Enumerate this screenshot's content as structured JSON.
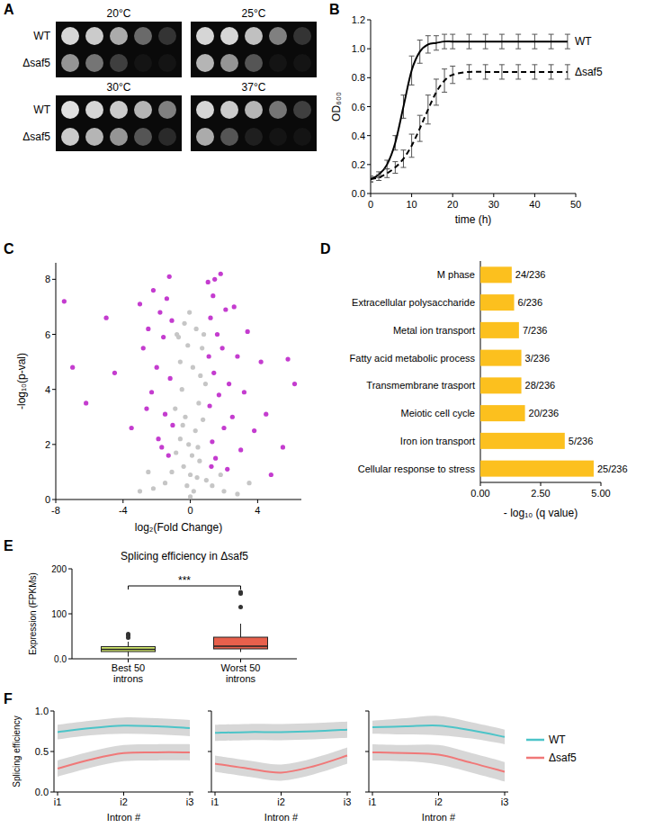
{
  "chart_data": [
    {
      "type": "spot_assay",
      "panel_label": "A",
      "strains": [
        "WT",
        "Δsaf5"
      ],
      "conditions": [
        {
          "title": "20°C",
          "spots": [
            [
              0.9,
              0.85,
              0.7,
              0.4,
              0.15
            ],
            [
              0.6,
              0.45,
              0.2,
              0,
              0
            ]
          ]
        },
        {
          "title": "25°C",
          "spots": [
            [
              0.9,
              0.9,
              0.8,
              0.5,
              0.15
            ],
            [
              0.75,
              0.6,
              0.3,
              0,
              0
            ]
          ]
        },
        {
          "title": "30°C",
          "spots": [
            [
              0.95,
              0.9,
              0.85,
              0.75,
              0.5
            ],
            [
              0.85,
              0.75,
              0.6,
              0.3,
              0.1
            ]
          ]
        },
        {
          "title": "37°C",
          "spots": [
            [
              0.9,
              0.85,
              0.75,
              0.45,
              0.2
            ],
            [
              0.7,
              0.3,
              0.05,
              0,
              0
            ]
          ]
        }
      ]
    },
    {
      "type": "line",
      "panel_label": "B",
      "x_label": "time (h)",
      "y_label": "OD₆₀₀",
      "x": [
        0,
        2,
        4,
        6,
        8,
        10,
        12,
        14,
        16,
        18,
        20,
        24,
        28,
        32,
        36,
        40,
        44,
        48
      ],
      "xlim": [
        0,
        50
      ],
      "xticks": [
        0,
        10,
        20,
        30,
        40,
        50
      ],
      "ylim": [
        0,
        1.2
      ],
      "yticks": [
        {
          "value": 0,
          "label": "0.0"
        },
        0.2,
        0.4,
        0.6,
        0.8,
        {
          "value": 1,
          "label": "1.0"
        },
        1.2
      ],
      "legend": "right",
      "series": [
        {
          "name": "WT",
          "color": "#000000",
          "line_style": "solid",
          "values": [
            0.1,
            0.13,
            0.2,
            0.35,
            0.6,
            0.85,
            0.98,
            1.03,
            1.04,
            1.05,
            1.05,
            1.05,
            1.05,
            1.05,
            1.05,
            1.05,
            1.05,
            1.05
          ],
          "error": [
            0.02,
            0.02,
            0.03,
            0.05,
            0.08,
            0.1,
            0.08,
            0.06,
            0.05,
            0.05,
            0.05,
            0.05,
            0.05,
            0.05,
            0.05,
            0.05,
            0.05,
            0.05
          ]
        },
        {
          "name": "Δsaf5",
          "color": "#000000",
          "line_style": "dashed",
          "values": [
            0.1,
            0.11,
            0.14,
            0.18,
            0.24,
            0.33,
            0.45,
            0.58,
            0.7,
            0.78,
            0.82,
            0.84,
            0.84,
            0.84,
            0.84,
            0.84,
            0.84,
            0.84
          ],
          "error": [
            0.02,
            0.02,
            0.03,
            0.04,
            0.06,
            0.08,
            0.09,
            0.1,
            0.09,
            0.08,
            0.06,
            0.05,
            0.05,
            0.05,
            0.05,
            0.05,
            0.05,
            0.05
          ]
        }
      ]
    },
    {
      "type": "scatter",
      "panel_label": "C",
      "x_label": "log₂(Fold Change)",
      "y_label": "-log₁₀(p-val)",
      "xlim": [
        -8,
        6.6
      ],
      "xticks": [
        -8,
        -4,
        0,
        4
      ],
      "ylim": [
        0,
        8.6
      ],
      "yticks": [
        0,
        2,
        4,
        6,
        8
      ],
      "series": [
        {
          "color": "#c6c6c6",
          "x": [
            0,
            0.2,
            -0.2,
            0.4,
            -0.4,
            0.1,
            -0.1,
            0.3,
            -0.3,
            0.5,
            -0.5,
            0.6,
            -0.6,
            0.7,
            -0.7,
            0.8,
            -0.8,
            0.9,
            -0.9,
            0.55,
            -0.6,
            0.75,
            -0.85,
            0,
            0.15,
            -0.15,
            0.35,
            -0.35,
            1.3,
            -1.5,
            2,
            -2.2,
            2.8,
            -3,
            1.8,
            -1.1,
            0.95,
            -2.5,
            3.5,
            -0.05,
            0.45,
            -0.45
          ],
          "values": [
            0.1,
            0.3,
            0.5,
            0.8,
            1.2,
            1.6,
            2,
            2.5,
            3,
            3.5,
            4,
            4.5,
            5,
            5.5,
            5.9,
            6,
            6,
            4.2,
            3.3,
            1.4,
            2.2,
            2.9,
            1.7,
            0.9,
            4.8,
            5.6,
            6.2,
            6.4,
            0.5,
            0.6,
            0.3,
            0.4,
            0.2,
            0.3,
            0.9,
            1,
            0.7,
            1,
            0.6,
            6.8,
            1.9,
            2.7
          ]
        },
        {
          "color": "#c43ccf",
          "x": [
            -7.5,
            -7,
            -6.2,
            -5,
            -4.5,
            -3.5,
            -3,
            -2.8,
            -2.5,
            -2.3,
            -2.2,
            -2,
            -1.9,
            -1.8,
            -1.6,
            -1.5,
            -1.4,
            -1.3,
            -1.2,
            -1.1,
            -1.05,
            -1.7,
            -2.6,
            1.05,
            1.1,
            1.15,
            1.2,
            1.3,
            1.35,
            1.4,
            1.5,
            1.6,
            1.7,
            1.8,
            1.9,
            2,
            2.1,
            2.3,
            2.5,
            2.6,
            2.8,
            3,
            3.2,
            3.4,
            3.8,
            4.2,
            4.5,
            4.8,
            5.5,
            5.8,
            6.2,
            1.25,
            2.2,
            1.45,
            -1.25
          ],
          "values": [
            7.2,
            4.8,
            3.5,
            6.6,
            4.6,
            2.6,
            7.1,
            5.5,
            6.2,
            3.9,
            7.6,
            4.8,
            2.2,
            6.8,
            5.9,
            3.1,
            7.3,
            1.6,
            4.4,
            6.5,
            2.7,
            1.9,
            3.3,
            7.9,
            5.2,
            3.4,
            6.6,
            2.1,
            7.4,
            4.6,
            1.5,
            6,
            3.8,
            8.2,
            5.5,
            2.6,
            6.9,
            4.2,
            3,
            7,
            5.2,
            1.8,
            3.9,
            6.1,
            2.5,
            5,
            3.1,
            0.9,
            1.9,
            5.1,
            4.2,
            1.2,
            1.1,
            8,
            8.1
          ]
        }
      ]
    },
    {
      "type": "bar",
      "panel_label": "D",
      "orientation": "horizontal",
      "x_label": "- log₁₀ (q value)",
      "categories": [
        "M phase",
        "Extracellular polysaccharide",
        "Metal ion transport",
        "Fatty acid metabolic process",
        "Transmembrane trasport",
        "Meiotic cell cycle",
        "Iron ion transport",
        "Cellular response to stress"
      ],
      "values": [
        1.3,
        1.4,
        1.6,
        1.7,
        1.7,
        1.85,
        3.5,
        4.7
      ],
      "annotations": [
        "24/236",
        "6/236",
        "7/236",
        "3/236",
        "28/236",
        "20/236",
        "5/236",
        "25/236"
      ],
      "color": "#fcc01e",
      "xlim": [
        0,
        5
      ],
      "xticks": [
        {
          "value": 0,
          "label": "0.00"
        },
        {
          "value": 2.5,
          "label": "2.50"
        },
        {
          "value": 5,
          "label": "5.00"
        }
      ]
    },
    {
      "type": "box",
      "panel_label": "E",
      "title": "Splicing efficiency in Δsaf5",
      "y_label": "Expression (FPKMs)",
      "categories": [
        "Best 50 introns",
        "Worst 50 introns"
      ],
      "colors": [
        "#d6ec6e",
        "#e8604c"
      ],
      "boxes": [
        {
          "min": 5,
          "q1": 16,
          "median": 21,
          "q3": 27,
          "max": 38,
          "outliers": [
            47,
            52,
            55
          ]
        },
        {
          "min": 15,
          "q1": 22,
          "median": 28,
          "q3": 48,
          "max": 78,
          "outliers": [
            115,
            145,
            148
          ]
        }
      ],
      "annotation": "***",
      "ylim": [
        0,
        200
      ],
      "yticks": [
        {
          "value": 0,
          "label": "0.0"
        },
        100,
        200
      ]
    },
    {
      "type": "line",
      "panel_label": "F",
      "x_label": "Intron #",
      "y_label": "Splicing efficiency",
      "categories": [
        "i1",
        null,
        "i2",
        null,
        "i3"
      ],
      "ylim": [
        0,
        1
      ],
      "yticks": [
        {
          "value": 0,
          "label": "0.0"
        },
        0.5,
        {
          "value": 1,
          "label": "1.0"
        }
      ],
      "legend": "right",
      "series": [
        {
          "name": "WT",
          "color": "#4cc4c8"
        },
        {
          "name": "Δsaf5",
          "color": "#f07878"
        }
      ],
      "panels": [
        {
          "values": [
            [
              0.74,
              0.79,
              0.82,
              0.81,
              0.79
            ],
            [
              0.29,
              0.4,
              0.48,
              0.49,
              0.49
            ]
          ],
          "error": [
            [
              0.09,
              0.09,
              0.1,
              0.1,
              0.1
            ],
            [
              0.1,
              0.1,
              0.1,
              0.1,
              0.1
            ]
          ]
        },
        {
          "values": [
            [
              0.73,
              0.74,
              0.74,
              0.75,
              0.77
            ],
            [
              0.35,
              0.29,
              0.24,
              0.32,
              0.45
            ]
          ],
          "error": [
            [
              0.1,
              0.1,
              0.1,
              0.1,
              0.1
            ],
            [
              0.1,
              0.1,
              0.1,
              0.1,
              0.1
            ]
          ]
        },
        {
          "values": [
            [
              0.8,
              0.81,
              0.82,
              0.76,
              0.68
            ],
            [
              0.49,
              0.48,
              0.46,
              0.36,
              0.25
            ]
          ],
          "error": [
            [
              0.08,
              0.1,
              0.12,
              0.1,
              0.09
            ],
            [
              0.1,
              0.1,
              0.12,
              0.12,
              0.12
            ]
          ]
        }
      ]
    }
  ]
}
